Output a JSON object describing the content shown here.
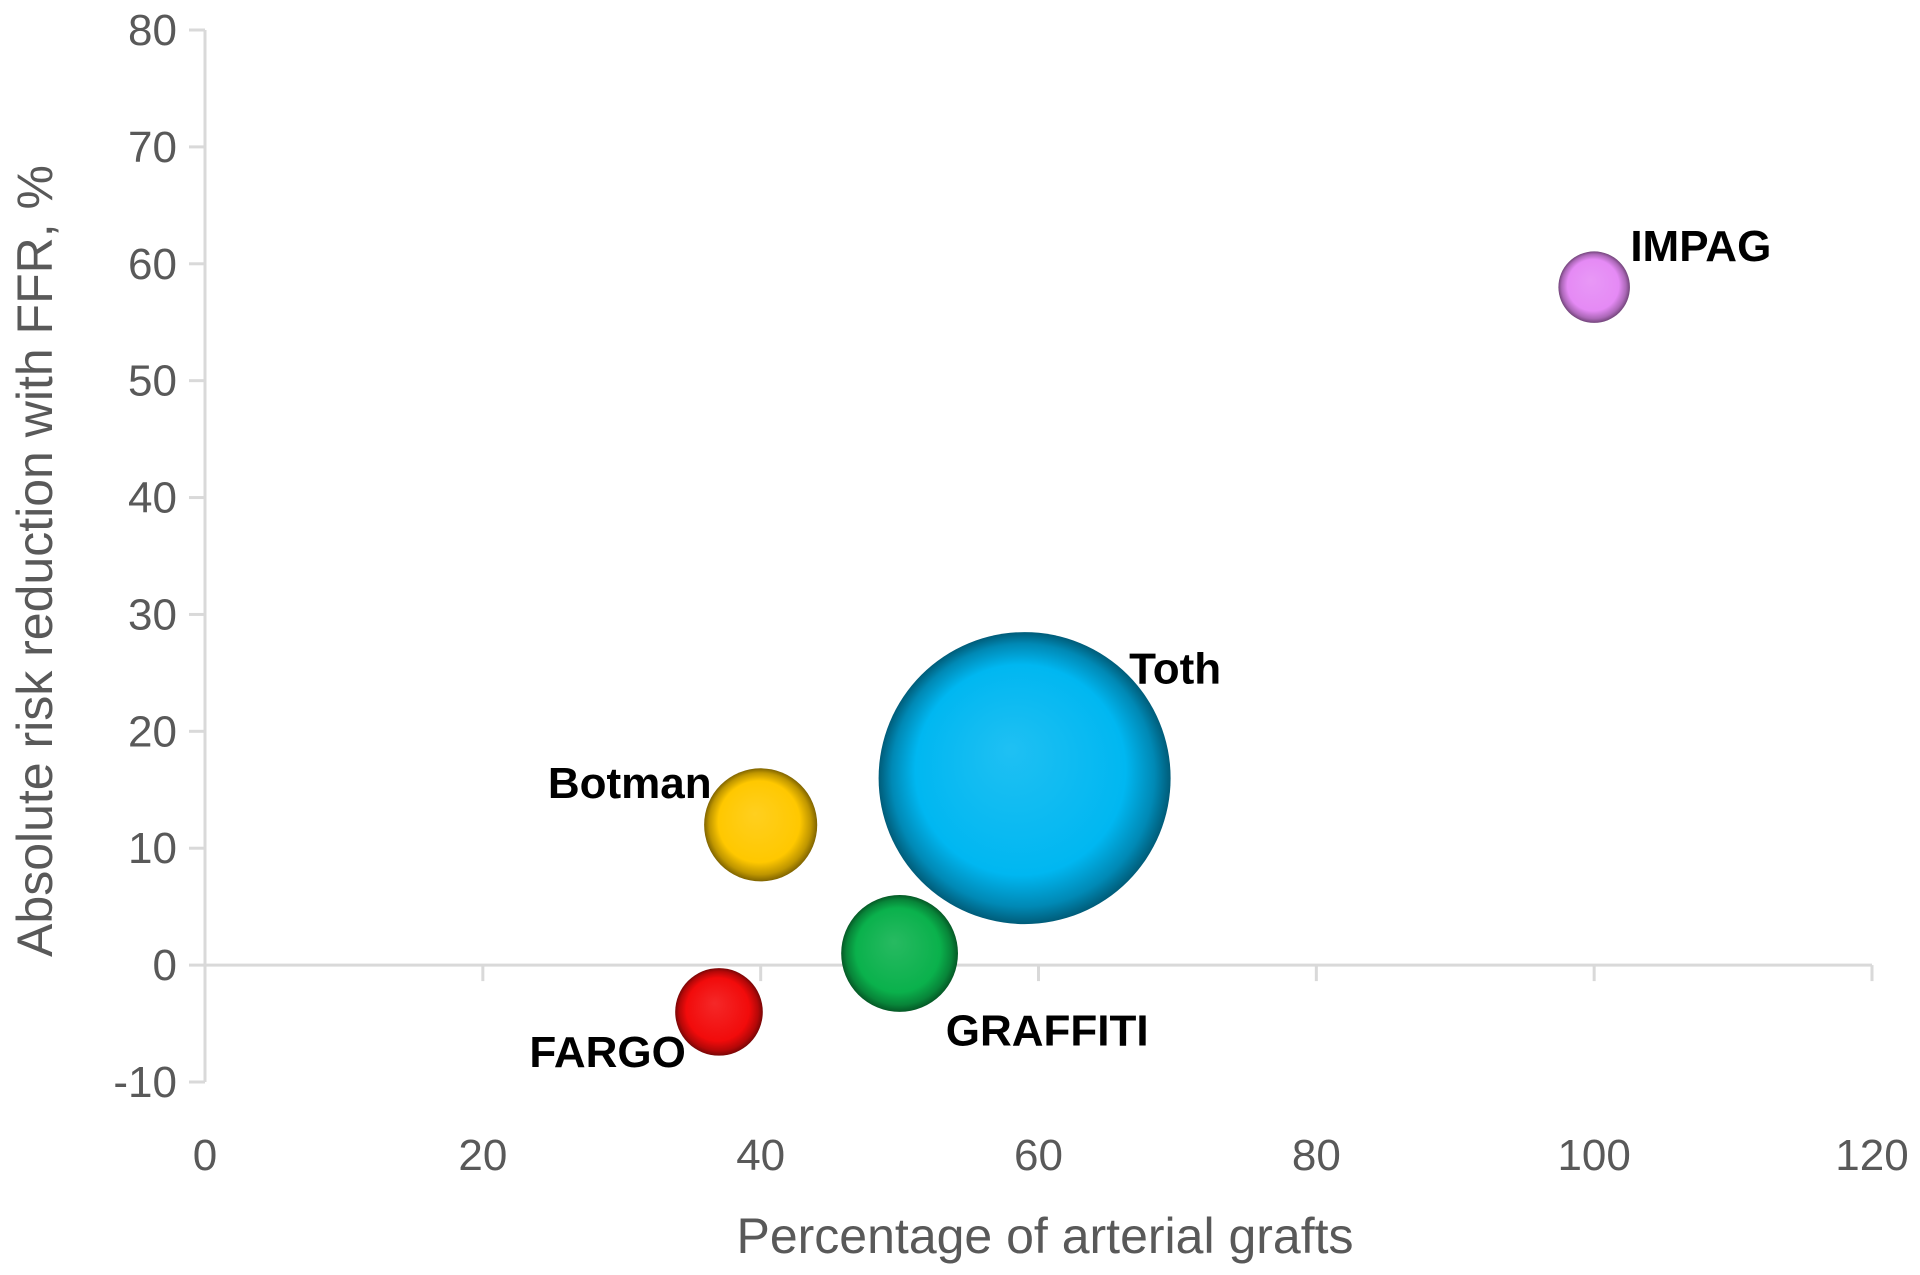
{
  "chart_data": {
    "type": "scatter",
    "subtype": "bubble",
    "title": "",
    "xlabel": "Percentage of arterial grafts",
    "ylabel": "Absolute risk reduction with FFR, %",
    "xlim": [
      0,
      120
    ],
    "ylim": [
      -10,
      80
    ],
    "xticks": [
      0,
      20,
      40,
      60,
      80,
      100,
      120
    ],
    "yticks": [
      -10,
      0,
      10,
      20,
      30,
      40,
      50,
      60,
      70,
      80
    ],
    "grid": false,
    "legend": "none",
    "points": [
      {
        "label": "IMPAG",
        "x": 100,
        "y": 58,
        "size": 6,
        "color": "#E58AF5",
        "label_pos": "upper-right"
      },
      {
        "label": "Toth",
        "x": 59,
        "y": 16,
        "size": 100,
        "color": "#00B7F1",
        "label_pos": "upper-right"
      },
      {
        "label": "Botman",
        "x": 40,
        "y": 12,
        "size": 15,
        "color": "#FFC800",
        "label_pos": "upper-left"
      },
      {
        "label": "GRAFFITI",
        "x": 50,
        "y": 1,
        "size": 16,
        "color": "#0AB14C",
        "label_pos": "lower-right"
      },
      {
        "label": "FARGO",
        "x": 37,
        "y": -4,
        "size": 9,
        "color": "#F20B0B",
        "label_pos": "lower-left"
      }
    ]
  }
}
